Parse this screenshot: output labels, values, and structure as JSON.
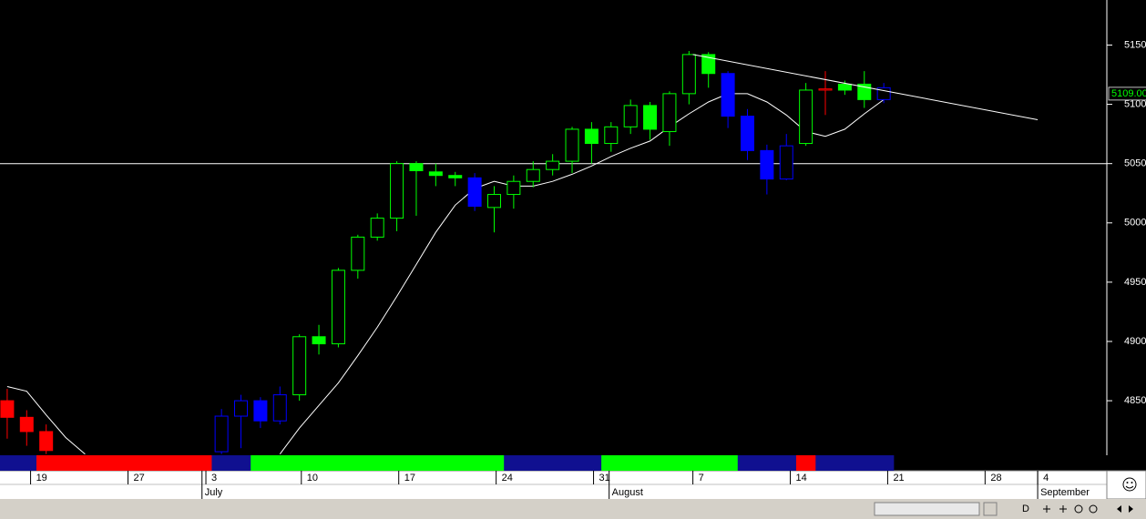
{
  "chart_data": {
    "type": "candlestick",
    "candles": {
      "x": [
        0,
        1,
        2,
        11,
        12,
        13,
        14,
        15,
        16,
        17,
        18,
        19,
        20,
        21,
        22,
        23,
        24,
        25,
        26,
        27,
        28,
        29,
        30,
        31,
        32,
        33,
        34,
        35,
        36,
        37,
        38,
        39,
        40,
        41,
        42,
        43,
        44,
        45
      ],
      "open": [
        4850,
        4836,
        4824,
        4807,
        4837,
        4850,
        4833,
        4855,
        4904,
        4898,
        4960,
        4988,
        5004,
        5050,
        5043,
        5040,
        5038,
        5013,
        5024,
        5035,
        5045,
        5052,
        5079,
        5067,
        5081,
        5099,
        5077,
        5109,
        5142,
        5126,
        5090,
        5061,
        5037,
        5067,
        5112,
        5117,
        5117,
        5104
      ],
      "high": [
        4860,
        4842,
        4830,
        4843,
        4855,
        4853,
        4862,
        4906,
        4914,
        4962,
        4990,
        5008,
        5052,
        5052,
        5050,
        5043,
        5042,
        5031,
        5040,
        5052,
        5058,
        5081,
        5085,
        5085,
        5104,
        5102,
        5111,
        5145,
        5144,
        5128,
        5096,
        5066,
        5075,
        5118,
        5128,
        5120,
        5128,
        5118
      ],
      "low": [
        4818,
        4812,
        4805,
        4805,
        4810,
        4827,
        4830,
        4850,
        4889,
        4895,
        4953,
        4985,
        4993,
        5006,
        5031,
        5031,
        5010,
        4992,
        5012,
        5030,
        5040,
        5042,
        5050,
        5060,
        5075,
        5070,
        5065,
        5100,
        5114,
        5080,
        5053,
        5024,
        5036,
        5065,
        5091,
        5108,
        5097,
        5101
      ],
      "close": [
        4836,
        4824,
        4808,
        4837,
        4850,
        4833,
        4855,
        4904,
        4898,
        4960,
        4988,
        5004,
        5050,
        5044,
        5040,
        5038,
        5014,
        5024,
        5035,
        5045,
        5052,
        5079,
        5067,
        5081,
        5099,
        5079,
        5109,
        5142,
        5126,
        5090,
        5061,
        5037,
        5065,
        5112,
        5113,
        5112,
        5104,
        5114
      ],
      "colors": [
        "#ff0000",
        "#ff0000",
        "#ff0000",
        "#0000ff",
        "#0000ff",
        "#0000ff",
        "#0000ff",
        "#00ff00",
        "#00ff00",
        "#00ff00",
        "#00ff00",
        "#00ff00",
        "#00ff00",
        "#00ff00",
        "#00ff00",
        "#00ff00",
        "#0000ff",
        "#00ff00",
        "#00ff00",
        "#00ff00",
        "#00ff00",
        "#00ff00",
        "#00ff00",
        "#00ff00",
        "#00ff00",
        "#00ff00",
        "#00ff00",
        "#00ff00",
        "#00ff00",
        "#0000ff",
        "#0000ff",
        "#0000ff",
        "#0000ff",
        "#00ff00",
        "#ff0000",
        "#00ff00",
        "#00ff00",
        "#0000ff"
      ]
    },
    "ma": {
      "color": "#ffffff",
      "x": [
        0,
        1,
        2,
        3,
        4,
        5,
        6,
        7,
        8,
        9,
        10,
        11,
        12,
        13,
        14,
        15,
        16,
        17,
        18,
        19,
        20,
        21,
        22,
        23,
        24,
        25,
        26,
        27,
        28,
        29,
        30,
        31,
        32,
        33,
        34,
        35,
        36,
        37,
        38,
        39,
        40,
        41,
        42,
        43,
        44,
        45
      ],
      "values": [
        4862,
        4858,
        4838,
        4819,
        4805,
        null,
        null,
        null,
        null,
        null,
        null,
        null,
        null,
        null,
        4805,
        4827,
        4846,
        4865,
        4888,
        4912,
        4938,
        4965,
        4992,
        5015,
        5029,
        5035,
        5031,
        5031,
        5035,
        5041,
        5048,
        5056,
        5063,
        5069,
        5081,
        5092,
        5102,
        5109,
        5109,
        5102,
        5091,
        5077,
        5073,
        5079,
        5092,
        5104
      ]
    },
    "indicator_colors": [
      "#101090",
      "#101090",
      "#ff0000",
      "#ff0000",
      "#ff0000",
      "#ff0000",
      "#ff0000",
      "#ff0000",
      "#ff0000",
      "#ff0000",
      "#ff0000",
      "#101090",
      "#101090",
      "#00ff00",
      "#00ff00",
      "#00ff00",
      "#00ff00",
      "#00ff00",
      "#00ff00",
      "#00ff00",
      "#00ff00",
      "#00ff00",
      "#00ff00",
      "#00ff00",
      "#00ff00",
      "#00ff00",
      "#101090",
      "#101090",
      "#101090",
      "#101090",
      "#101090",
      "#00ff00",
      "#00ff00",
      "#00ff00",
      "#00ff00",
      "#00ff00",
      "#00ff00",
      "#00ff00",
      "#101090",
      "#101090",
      "#101090",
      "#ff0000",
      "#101090",
      "#101090",
      "#101090",
      "#101090"
    ],
    "hline": 5050,
    "trendline": {
      "x": [
        35.2,
        52.9
      ],
      "y": [
        5142,
        5087
      ]
    },
    "last": {
      "value": 5109,
      "label": "5109.00"
    },
    "xlim": [
      -0.37,
      56.45
    ],
    "ylim": [
      4804,
      5188
    ],
    "yticks": [
      4850,
      4900,
      4950,
      5000,
      5050,
      5100,
      5150
    ],
    "xticks": [
      {
        "value": 1.2,
        "label": "19"
      },
      {
        "value": 6.2,
        "label": "27"
      },
      {
        "value": 10.2,
        "label": "3"
      },
      {
        "value": 15.1,
        "label": "10"
      },
      {
        "value": 20.1,
        "label": "17"
      },
      {
        "value": 25.1,
        "label": "24"
      },
      {
        "value": 30.1,
        "label": "31"
      },
      {
        "value": 35.2,
        "label": "7"
      },
      {
        "value": 40.2,
        "label": "14"
      },
      {
        "value": 45.2,
        "label": "21"
      },
      {
        "value": 50.2,
        "label": "28"
      },
      {
        "value": 52.9,
        "label": "4"
      }
    ],
    "month_ticks": [
      {
        "value": 10.0,
        "label": "July"
      },
      {
        "value": 30.9,
        "label": "August"
      },
      {
        "value": 52.9,
        "label": "September"
      }
    ],
    "toolbar": {
      "button": "D"
    }
  }
}
